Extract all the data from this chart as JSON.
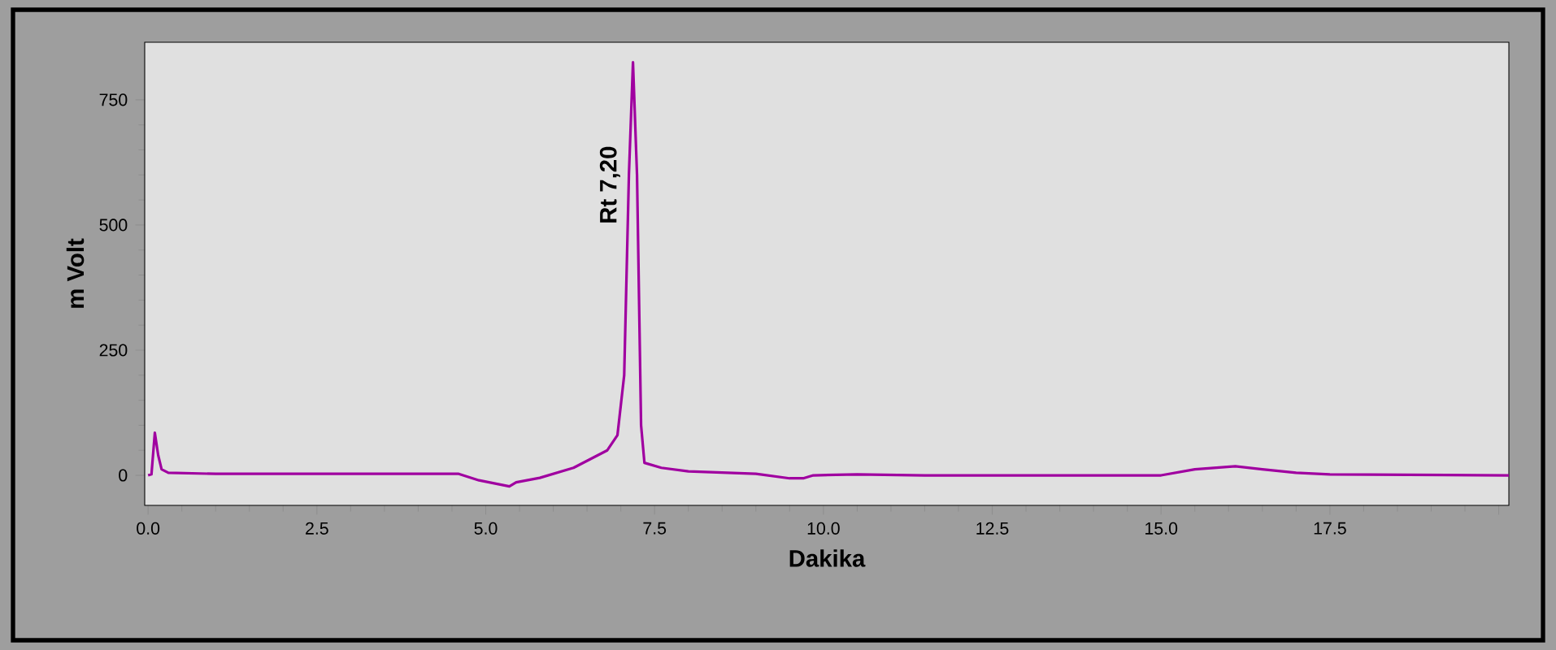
{
  "chart_data": {
    "type": "line",
    "xlabel": "Dakika",
    "ylabel": "m Volt",
    "annotations": [
      {
        "text": "Rt 7,20",
        "x": 7.2,
        "y": 580
      }
    ],
    "xlim": [
      -0.05,
      20.15
    ],
    "ylim": [
      -60,
      865
    ],
    "xticks": [
      {
        "value": 0,
        "label": "0.0"
      },
      {
        "value": 2.5,
        "label": "2.5"
      },
      {
        "value": 5,
        "label": "5.0"
      },
      {
        "value": 7.5,
        "label": "7.5"
      },
      {
        "value": 10,
        "label": "10.0"
      },
      {
        "value": 12.5,
        "label": "12.5"
      },
      {
        "value": 15,
        "label": "15.0"
      },
      {
        "value": 17.5,
        "label": "17.5"
      },
      {
        "value": 20,
        "label": null
      }
    ],
    "yticks": [
      0,
      250,
      500,
      750
    ],
    "grid": false,
    "marker": "none",
    "line_style": "solid",
    "series": [
      {
        "color": "#a000a0",
        "x": [
          0,
          0.05,
          0.1,
          0.15,
          0.2,
          0.3,
          1,
          4.6,
          4.9,
          5.35,
          5.45,
          5.8,
          6.3,
          6.8,
          6.95,
          7.05,
          7.12,
          7.18,
          7.24,
          7.3,
          7.35,
          7.6,
          8,
          9,
          9.5,
          9.7,
          9.85,
          10.5,
          11.5,
          15,
          15.5,
          16.1,
          16.5,
          17,
          17.5,
          20.15
        ],
        "values": [
          0,
          2,
          85,
          40,
          12,
          5,
          3,
          3,
          -10,
          -22,
          -14,
          -5,
          15,
          50,
          80,
          200,
          600,
          825,
          600,
          100,
          25,
          15,
          8,
          3,
          -6,
          -6,
          0,
          2,
          0,
          0,
          12,
          18,
          12,
          5,
          2,
          0
        ]
      }
    ]
  }
}
